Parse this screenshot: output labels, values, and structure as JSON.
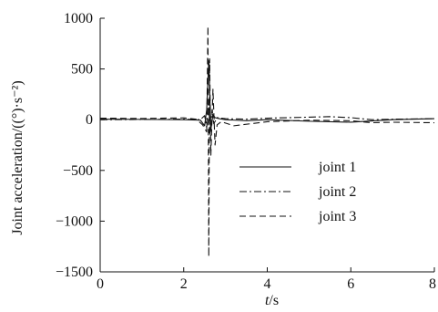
{
  "chart_data": {
    "type": "line",
    "xlabel_italic": "t",
    "xlabel_unit": "/s",
    "ylabel": "Joint acceleration/((°)·s⁻²)",
    "xlim": [
      0,
      8
    ],
    "ylim": [
      -1500,
      1000
    ],
    "x_ticks": [
      0,
      2,
      4,
      6,
      8
    ],
    "y_ticks": [
      1000,
      500,
      0,
      -500,
      -1000,
      -1500
    ],
    "x_tick_labels": [
      "0",
      "2",
      "4",
      "6",
      "8"
    ],
    "y_tick_labels": [
      "1000",
      "500",
      "0",
      "−500",
      "−1000",
      "−1500"
    ],
    "grid": false,
    "legend_position": "center-right",
    "series": [
      {
        "name": "joint 1",
        "dash": "solid",
        "color": "#111111",
        "x": [
          0,
          1.0,
          2.0,
          2.4,
          2.5,
          2.55,
          2.6,
          2.62,
          2.65,
          2.7,
          2.75,
          2.85,
          3.0,
          3.5,
          4.0,
          5.0,
          6.0,
          7.0,
          8.0
        ],
        "y": [
          5,
          3,
          0,
          -5,
          -60,
          100,
          580,
          300,
          -100,
          50,
          20,
          10,
          0,
          -10,
          0,
          -15,
          -25,
          0,
          10
        ]
      },
      {
        "name": "joint 2",
        "dash": "dashdot",
        "color": "#111111",
        "x": [
          0,
          1.0,
          2.0,
          2.4,
          2.5,
          2.55,
          2.6,
          2.63,
          2.68,
          2.72,
          2.8,
          3.0,
          3.5,
          4.0,
          4.5,
          5.0,
          5.5,
          6.0,
          6.5,
          7.0,
          8.0
        ],
        "y": [
          0,
          2,
          5,
          0,
          40,
          -80,
          200,
          -150,
          100,
          -40,
          20,
          10,
          5,
          15,
          20,
          25,
          30,
          20,
          0,
          5,
          10
        ]
      },
      {
        "name": "joint 3",
        "dash": "dashed",
        "color": "#111111",
        "x": [
          0,
          1.0,
          2.0,
          2.3,
          2.45,
          2.55,
          2.58,
          2.6,
          2.62,
          2.65,
          2.7,
          2.75,
          2.8,
          2.9,
          3.2,
          4.0,
          5.0,
          6.0,
          6.5,
          7.0,
          8.0
        ],
        "y": [
          15,
          12,
          18,
          5,
          -50,
          -120,
          920,
          -1350,
          600,
          -350,
          300,
          -250,
          -50,
          -20,
          -60,
          -20,
          -5,
          -10,
          -30,
          -25,
          -30
        ]
      }
    ]
  }
}
